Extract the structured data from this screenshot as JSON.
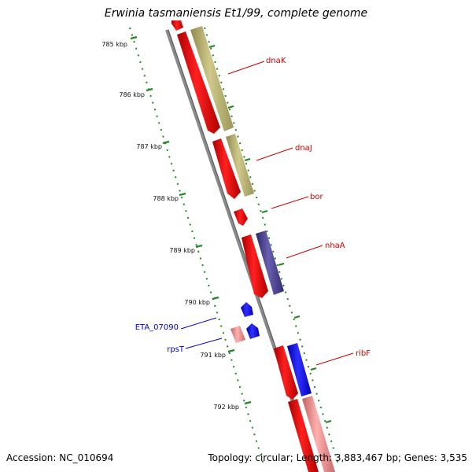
{
  "title": "Erwinia tasmaniensis Et1/99, complete genome",
  "accession_text": "Accession: NC_010694",
  "topology_text": "Topology: circular; Length: 3,883,467 bp; Genes: 3,535",
  "colors": {
    "backbone": "#8a8a8a",
    "tick": "#228822",
    "gene_red": "#ff0000",
    "gene_olive": "#bdb76b",
    "gene_purple": "#483d8b",
    "gene_blue": "#0000ff",
    "gene_pink": "#f08080",
    "label_red": "#cc0000",
    "label_blue": "#0000cc"
  },
  "scale": {
    "ticks": [
      {
        "label": "785 kbp"
      },
      {
        "label": "786 kbp"
      },
      {
        "label": "787 kbp"
      },
      {
        "label": "788 kbp"
      },
      {
        "label": "789 kbp"
      },
      {
        "label": "790 kbp"
      },
      {
        "label": "791 kbp"
      },
      {
        "label": "792 kbp"
      }
    ]
  },
  "genes": [
    {
      "name": "dnaK",
      "color": "red"
    },
    {
      "name": "dnaJ",
      "color": "red"
    },
    {
      "name": "bor",
      "color": "red"
    },
    {
      "name": "nhaA",
      "color": "red"
    },
    {
      "name": "ribF",
      "color": "red"
    },
    {
      "name": "ETA_07090",
      "color": "blue"
    },
    {
      "name": "rpsT",
      "color": "blue"
    }
  ]
}
